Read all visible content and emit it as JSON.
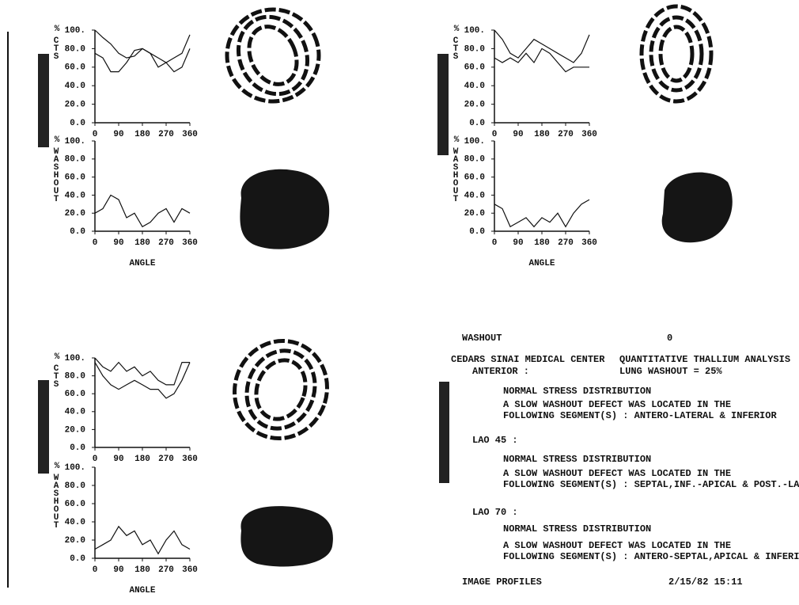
{
  "chart_data": [
    {
      "type": "line",
      "ylabel": "CTS",
      "y_unit": "%",
      "x": [
        0,
        30,
        60,
        90,
        120,
        150,
        180,
        210,
        240,
        270,
        300,
        330,
        360
      ],
      "series": [
        {
          "color": "#111",
          "values": [
            100,
            92,
            85,
            75,
            70,
            72,
            80,
            75,
            70,
            65,
            70,
            75,
            95
          ]
        },
        {
          "color": "#111",
          "values": [
            75,
            70,
            55,
            55,
            65,
            78,
            80,
            75,
            60,
            65,
            55,
            60,
            80
          ]
        }
      ],
      "xlim": [
        0,
        360
      ],
      "xticks": [
        0,
        90,
        180,
        270,
        360
      ],
      "ylim": [
        0,
        100
      ],
      "yticks": [
        {
          "value": 0,
          "label": "0.0"
        },
        {
          "value": 20,
          "label": "20.0"
        },
        {
          "value": 40,
          "label": "40.0"
        },
        {
          "value": 60,
          "label": "60.0"
        },
        {
          "value": 80,
          "label": "80.0"
        },
        {
          "value": 100,
          "label": "100."
        }
      ]
    },
    {
      "type": "line",
      "ylabel": "WASHOUT",
      "y_unit": "%",
      "xlabel": "ANGLE",
      "x": [
        0,
        30,
        60,
        90,
        120,
        150,
        180,
        210,
        240,
        270,
        300,
        330,
        360
      ],
      "series": [
        {
          "color": "#111",
          "values": [
            20,
            25,
            40,
            35,
            15,
            20,
            5,
            10,
            20,
            25,
            10,
            25,
            20
          ]
        }
      ],
      "xlim": [
        0,
        360
      ],
      "xticks": [
        0,
        90,
        180,
        270,
        360
      ],
      "ylim": [
        0,
        100
      ],
      "yticks": [
        {
          "value": 0,
          "label": "0.0"
        },
        {
          "value": 20,
          "label": "20.0"
        },
        {
          "value": 40,
          "label": "40.0"
        },
        {
          "value": 60,
          "label": "60.0"
        },
        {
          "value": 80,
          "label": "80.0"
        },
        {
          "value": 100,
          "label": "100."
        }
      ]
    },
    {
      "type": "line",
      "ylabel": "CTS",
      "y_unit": "%",
      "x": [
        0,
        30,
        60,
        90,
        120,
        150,
        180,
        210,
        240,
        270,
        300,
        330,
        360
      ],
      "series": [
        {
          "color": "#111",
          "values": [
            100,
            90,
            75,
            70,
            80,
            90,
            85,
            80,
            75,
            70,
            65,
            75,
            95
          ]
        },
        {
          "color": "#111",
          "values": [
            70,
            65,
            70,
            65,
            75,
            65,
            80,
            75,
            65,
            55,
            60,
            60,
            60
          ]
        }
      ],
      "xlim": [
        0,
        360
      ],
      "xticks": [
        0,
        90,
        180,
        270,
        360
      ],
      "ylim": [
        0,
        100
      ],
      "yticks": [
        {
          "value": 0,
          "label": "0.0"
        },
        {
          "value": 20,
          "label": "20.0"
        },
        {
          "value": 40,
          "label": "40.0"
        },
        {
          "value": 60,
          "label": "60.0"
        },
        {
          "value": 80,
          "label": "80.0"
        },
        {
          "value": 100,
          "label": "100."
        }
      ]
    },
    {
      "type": "line",
      "ylabel": "WASHOUT",
      "y_unit": "%",
      "xlabel": "ANGLE",
      "x": [
        0,
        30,
        60,
        90,
        120,
        150,
        180,
        210,
        240,
        270,
        300,
        330,
        360
      ],
      "series": [
        {
          "color": "#111",
          "values": [
            30,
            25,
            5,
            10,
            15,
            5,
            15,
            10,
            20,
            5,
            20,
            30,
            35
          ]
        }
      ],
      "xlim": [
        0,
        360
      ],
      "xticks": [
        0,
        90,
        180,
        270,
        360
      ],
      "ylim": [
        0,
        100
      ],
      "yticks": [
        {
          "value": 0,
          "label": "0.0"
        },
        {
          "value": 20,
          "label": "20.0"
        },
        {
          "value": 40,
          "label": "40.0"
        },
        {
          "value": 60,
          "label": "60.0"
        },
        {
          "value": 80,
          "label": "80.0"
        },
        {
          "value": 100,
          "label": "100."
        }
      ]
    },
    {
      "type": "line",
      "ylabel": "CTS",
      "y_unit": "%",
      "x": [
        0,
        30,
        60,
        90,
        120,
        150,
        180,
        210,
        240,
        270,
        300,
        330,
        360
      ],
      "series": [
        {
          "color": "#111",
          "values": [
            100,
            90,
            85,
            95,
            85,
            90,
            80,
            85,
            75,
            70,
            70,
            95,
            95
          ]
        },
        {
          "color": "#111",
          "values": [
            95,
            80,
            70,
            65,
            70,
            75,
            70,
            65,
            65,
            55,
            60,
            75,
            95
          ]
        }
      ],
      "xlim": [
        0,
        360
      ],
      "xticks": [
        0,
        90,
        180,
        270,
        360
      ],
      "ylim": [
        0,
        100
      ],
      "yticks": [
        {
          "value": 0,
          "label": "0.0"
        },
        {
          "value": 20,
          "label": "20.0"
        },
        {
          "value": 40,
          "label": "40.0"
        },
        {
          "value": 60,
          "label": "60.0"
        },
        {
          "value": 80,
          "label": "80.0"
        },
        {
          "value": 100,
          "label": "100."
        }
      ]
    },
    {
      "type": "line",
      "ylabel": "WASHOUT",
      "y_unit": "%",
      "xlabel": "ANGLE",
      "x": [
        0,
        30,
        60,
        90,
        120,
        150,
        180,
        210,
        240,
        270,
        300,
        330,
        360
      ],
      "series": [
        {
          "color": "#111",
          "values": [
            10,
            15,
            20,
            35,
            25,
            30,
            15,
            20,
            5,
            20,
            30,
            15,
            10
          ]
        }
      ],
      "xlim": [
        0,
        360
      ],
      "xticks": [
        0,
        90,
        180,
        270,
        360
      ],
      "ylim": [
        0,
        100
      ],
      "yticks": [
        {
          "value": 0,
          "label": "0.0"
        },
        {
          "value": 20,
          "label": "20.0"
        },
        {
          "value": 40,
          "label": "40.0"
        },
        {
          "value": 60,
          "label": "60.0"
        },
        {
          "value": 80,
          "label": "80.0"
        },
        {
          "value": 100,
          "label": "100."
        }
      ]
    }
  ],
  "report": {
    "mode": "WASHOUT",
    "mode_value": "0",
    "center": "CEDARS SINAI MEDICAL CENTER",
    "analysis": "QUANTITATIVE THALLIUM ANALYSIS",
    "lung_washout": "LUNG WASHOUT =  25%",
    "sections": [
      {
        "view": "ANTERIOR :",
        "lines": [
          "NORMAL STRESS DISTRIBUTION",
          "A SLOW WASHOUT DEFECT WAS LOCATED IN THE",
          "FOLLOWING SEGMENT(S) : ANTERO-LATERAL & INFERIOR"
        ]
      },
      {
        "view": "LAO 45 :",
        "lines": [
          "NORMAL STRESS DISTRIBUTION",
          "A SLOW WASHOUT DEFECT WAS LOCATED IN THE",
          "FOLLOWING SEGMENT(S) : SEPTAL,INF.-APICAL & POST.-LAT."
        ]
      },
      {
        "view": "LAO 70 :",
        "lines": [
          "NORMAL STRESS DISTRIBUTION",
          "A SLOW WASHOUT DEFECT WAS LOCATED IN THE",
          "FOLLOWING SEGMENT(S) : ANTERO-SEPTAL,APICAL & INFERIOR"
        ]
      }
    ],
    "footer_left": "IMAGE PROFILES",
    "footer_right": "2/15/82 15:11"
  }
}
